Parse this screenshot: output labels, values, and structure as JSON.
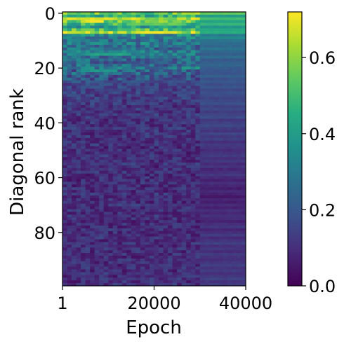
{
  "chart_data": {
    "type": "heatmap",
    "title": "",
    "xlabel": "Epoch",
    "ylabel": "Diagonal rank",
    "x_range": [
      1,
      40000
    ],
    "y_range": [
      0,
      99
    ],
    "x_ticks": [
      {
        "value": 1,
        "label": "1"
      },
      {
        "value": 20000,
        "label": "20000"
      },
      {
        "value": 40000,
        "label": "40000"
      }
    ],
    "y_ticks": [
      {
        "value": 0,
        "label": "0"
      },
      {
        "value": 20,
        "label": "20"
      },
      {
        "value": 40,
        "label": "40"
      },
      {
        "value": 60,
        "label": "60"
      },
      {
        "value": 80,
        "label": "80"
      }
    ],
    "colorbar": {
      "colormap": "viridis",
      "range": [
        0.0,
        0.72
      ],
      "ticks": [
        {
          "value": 0.0,
          "label": "0.0"
        },
        {
          "value": 0.2,
          "label": "0.2"
        },
        {
          "value": 0.4,
          "label": "0.4"
        },
        {
          "value": 0.6,
          "label": "0.6"
        }
      ]
    },
    "rows": 100,
    "columns": 40,
    "phase_change_epoch": 30000,
    "row_profile_early": [
      0.55,
      0.45,
      0.62,
      0.55,
      0.48,
      0.4,
      0.52,
      0.62,
      0.35,
      0.32,
      0.28,
      0.3,
      0.26,
      0.25,
      0.28,
      0.3,
      0.26,
      0.24,
      0.22,
      0.25,
      0.3,
      0.22,
      0.24,
      0.2,
      0.18,
      0.2,
      0.17,
      0.16,
      0.15,
      0.16,
      0.14,
      0.15,
      0.13,
      0.14,
      0.12,
      0.13,
      0.12,
      0.14,
      0.12,
      0.11,
      0.12,
      0.11,
      0.13,
      0.12,
      0.11,
      0.12,
      0.1,
      0.11,
      0.12,
      0.1,
      0.11,
      0.1,
      0.12,
      0.11,
      0.1,
      0.13,
      0.1,
      0.11,
      0.12,
      0.1,
      0.11,
      0.1,
      0.12,
      0.1,
      0.11,
      0.1,
      0.12,
      0.1,
      0.11,
      0.1,
      0.12,
      0.1,
      0.11,
      0.1,
      0.12,
      0.11,
      0.1,
      0.11,
      0.1,
      0.12,
      0.1,
      0.11,
      0.12,
      0.1,
      0.11,
      0.1,
      0.12,
      0.1,
      0.11,
      0.1,
      0.12,
      0.11,
      0.1,
      0.11,
      0.1,
      0.12,
      0.1,
      0.11,
      0.1,
      0.12
    ],
    "row_profile_late": [
      0.55,
      0.4,
      0.5,
      0.42,
      0.48,
      0.38,
      0.44,
      0.46,
      0.3,
      0.34,
      0.28,
      0.26,
      0.25,
      0.28,
      0.24,
      0.22,
      0.26,
      0.2,
      0.22,
      0.24,
      0.21,
      0.2,
      0.19,
      0.22,
      0.18,
      0.2,
      0.17,
      0.19,
      0.16,
      0.18,
      0.17,
      0.15,
      0.16,
      0.18,
      0.14,
      0.16,
      0.13,
      0.15,
      0.17,
      0.12,
      0.14,
      0.16,
      0.13,
      0.11,
      0.15,
      0.12,
      0.14,
      0.1,
      0.13,
      0.12,
      0.09,
      0.11,
      0.13,
      0.1,
      0.12,
      0.09,
      0.11,
      0.08,
      0.1,
      0.12,
      0.09,
      0.07,
      0.1,
      0.08,
      0.06,
      0.09,
      0.07,
      0.05,
      0.08,
      0.06,
      0.09,
      0.07,
      0.1,
      0.08,
      0.11,
      0.09,
      0.07,
      0.1,
      0.12,
      0.08,
      0.1,
      0.13,
      0.09,
      0.11,
      0.14,
      0.1,
      0.12,
      0.09,
      0.13,
      0.11,
      0.1,
      0.12,
      0.14,
      0.11,
      0.13,
      0.1,
      0.12,
      0.14,
      0.11,
      0.13
    ],
    "bright_streaks": [
      {
        "row": 2,
        "epoch_from": 1500,
        "epoch_to": 12000,
        "value": 0.68
      },
      {
        "row": 3,
        "epoch_from": 5000,
        "epoch_to": 9000,
        "value": 0.7
      },
      {
        "row": 4,
        "epoch_from": 14000,
        "epoch_to": 26000,
        "value": 0.55
      },
      {
        "row": 7,
        "epoch_from": 16000,
        "epoch_to": 24000,
        "value": 0.7
      },
      {
        "row": 7,
        "epoch_from": 1000,
        "epoch_to": 5000,
        "value": 0.65
      },
      {
        "row": 15,
        "epoch_from": 6000,
        "epoch_to": 14000,
        "value": 0.42
      },
      {
        "row": 21,
        "epoch_from": 4000,
        "epoch_to": 12000,
        "value": 0.38
      }
    ]
  }
}
